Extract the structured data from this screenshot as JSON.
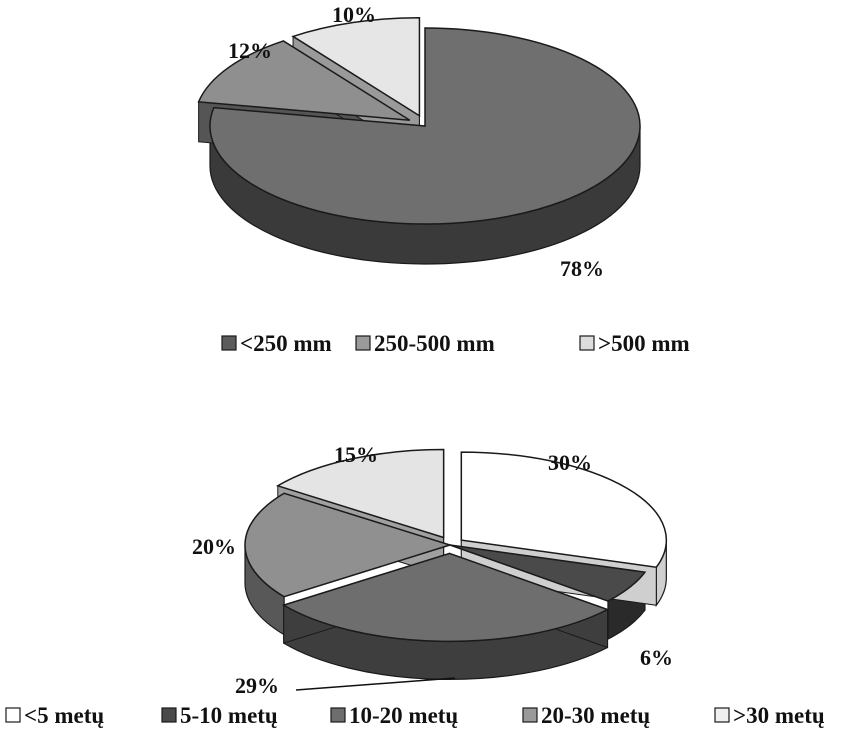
{
  "chart_data": [
    {
      "type": "pie",
      "title": "",
      "categories": [
        "<250 mm",
        "250-500 mm",
        ">500 mm"
      ],
      "values": [
        78,
        12,
        10
      ],
      "labels": [
        "78%",
        "12%",
        "10%"
      ],
      "legend_position": "bottom",
      "colors": {
        "top": [
          "#6f6f6f",
          "#8f8f8f",
          "#e6e6e6"
        ],
        "side": [
          "#3a3a3a",
          "#555555",
          "#9a9a9a"
        ],
        "legend": [
          "#5c5c5c",
          "#9a9a9a",
          "#dcdcdc"
        ]
      },
      "exploded": [
        false,
        true,
        true
      ]
    },
    {
      "type": "pie",
      "title": "",
      "categories": [
        "<5 metų",
        "5-10 metų",
        "10-20 metų",
        "20-30 metų",
        ">30 metų"
      ],
      "values": [
        30,
        6,
        29,
        20,
        15
      ],
      "labels": [
        "30%",
        "6%",
        "29%",
        "20%",
        "15%"
      ],
      "legend_position": "bottom",
      "colors": {
        "top": [
          "#ffffff",
          "#4a4a4a",
          "#6e6e6e",
          "#909090",
          "#e4e4e4"
        ],
        "side": [
          "#cfcfcf",
          "#2a2a2a",
          "#3e3e3e",
          "#585858",
          "#a0a0a0"
        ],
        "legend": [
          "#ffffff",
          "#4a4a4a",
          "#6e6e6e",
          "#9a9a9a",
          "#efefef"
        ]
      },
      "exploded": [
        true,
        false,
        true,
        false,
        true
      ]
    }
  ]
}
